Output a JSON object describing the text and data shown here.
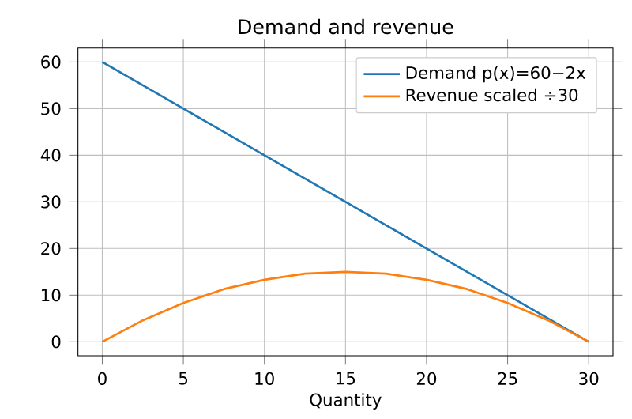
{
  "chart_data": {
    "type": "line",
    "title": "Demand and revenue",
    "xlabel": "Quantity",
    "x": [
      0,
      2.5,
      5,
      7.5,
      10,
      12.5,
      15,
      17.5,
      20,
      22.5,
      25,
      27.5,
      30
    ],
    "series": [
      {
        "name": "Demand p(x)=60−2x",
        "color": "#1f77b4",
        "values": [
          60,
          55,
          50,
          45,
          40,
          35,
          30,
          25,
          20,
          15,
          10,
          5,
          0
        ]
      },
      {
        "name": "Revenue scaled ÷30",
        "color": "#ff7f0e",
        "values": [
          0,
          4.6,
          8.3,
          11.3,
          13.3,
          14.6,
          15,
          14.6,
          13.3,
          11.3,
          8.3,
          4.6,
          0
        ]
      }
    ],
    "xlim": [
      -1.5,
      31.5
    ],
    "ylim": [
      -3,
      63
    ],
    "xticks": [
      0,
      5,
      10,
      15,
      20,
      25,
      30
    ],
    "yticks": [
      0,
      10,
      20,
      30,
      40,
      50,
      60
    ],
    "grid": true,
    "legend": "top right",
    "marker": "none",
    "line_style": "solid"
  }
}
